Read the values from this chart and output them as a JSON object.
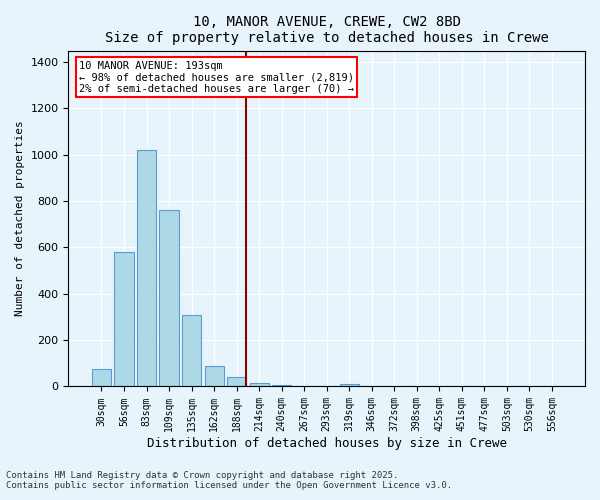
{
  "title1": "10, MANOR AVENUE, CREWE, CW2 8BD",
  "title2": "Size of property relative to detached houses in Crewe",
  "xlabel": "Distribution of detached houses by size in Crewe",
  "ylabel": "Number of detached properties",
  "categories": [
    "30sqm",
    "56sqm",
    "83sqm",
    "109sqm",
    "135sqm",
    "162sqm",
    "188sqm",
    "214sqm",
    "240sqm",
    "267sqm",
    "293sqm",
    "319sqm",
    "346sqm",
    "372sqm",
    "398sqm",
    "425sqm",
    "451sqm",
    "477sqm",
    "503sqm",
    "530sqm",
    "556sqm"
  ],
  "values": [
    75,
    580,
    1020,
    760,
    310,
    90,
    40,
    15,
    5,
    0,
    0,
    10,
    0,
    0,
    0,
    0,
    0,
    0,
    0,
    0,
    0
  ],
  "bar_color": "#add8e6",
  "bar_edge_color": "#5b9bd5",
  "red_line_index": 6,
  "ylim": [
    0,
    1450
  ],
  "yticks": [
    0,
    200,
    400,
    600,
    800,
    1000,
    1200,
    1400
  ],
  "legend_title": "10 MANOR AVENUE: 193sqm",
  "legend_line1": "← 98% of detached houses are smaller (2,819)",
  "legend_line2": "2% of semi-detached houses are larger (70) →",
  "footnote1": "Contains HM Land Registry data © Crown copyright and database right 2025.",
  "footnote2": "Contains public sector information licensed under the Open Government Licence v3.0.",
  "bg_color": "#e8f4fc",
  "plot_bg_color": "#e8f4fc"
}
